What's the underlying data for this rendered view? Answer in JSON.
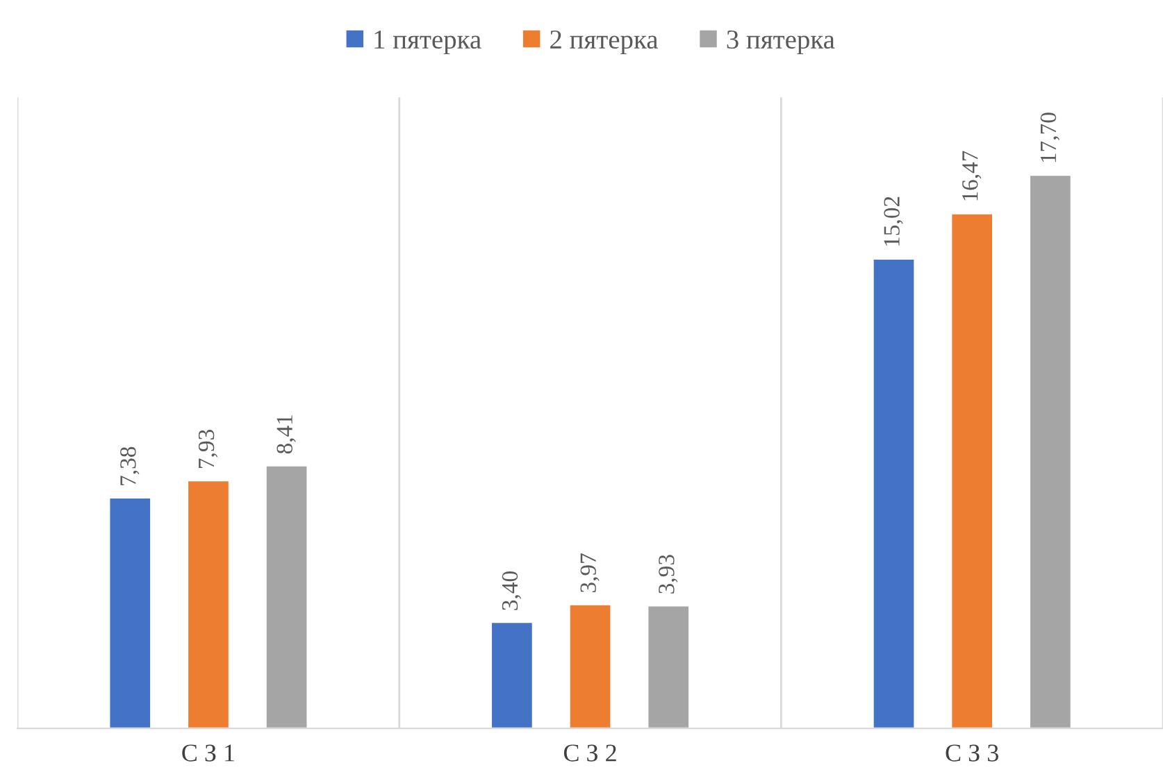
{
  "chart_data": {
    "type": "bar",
    "categories": [
      "С З 1",
      "С З 2",
      "С З 3"
    ],
    "series": [
      {
        "name": "1 пятерка",
        "color": "#4472c4",
        "values": [
          7.38,
          3.4,
          15.02
        ],
        "value_labels": [
          "7,38",
          "3,40",
          "15,02"
        ]
      },
      {
        "name": "2 пятерка",
        "color": "#ed7d31",
        "values": [
          7.93,
          3.97,
          16.47
        ],
        "value_labels": [
          "7,93",
          "3,97",
          "16,47"
        ]
      },
      {
        "name": "3 пятерка",
        "color": "#a5a5a5",
        "values": [
          8.41,
          3.93,
          17.7
        ],
        "value_labels": [
          "8,41",
          "3,93",
          "17,70"
        ]
      }
    ],
    "grid": "x",
    "legend": "top"
  }
}
